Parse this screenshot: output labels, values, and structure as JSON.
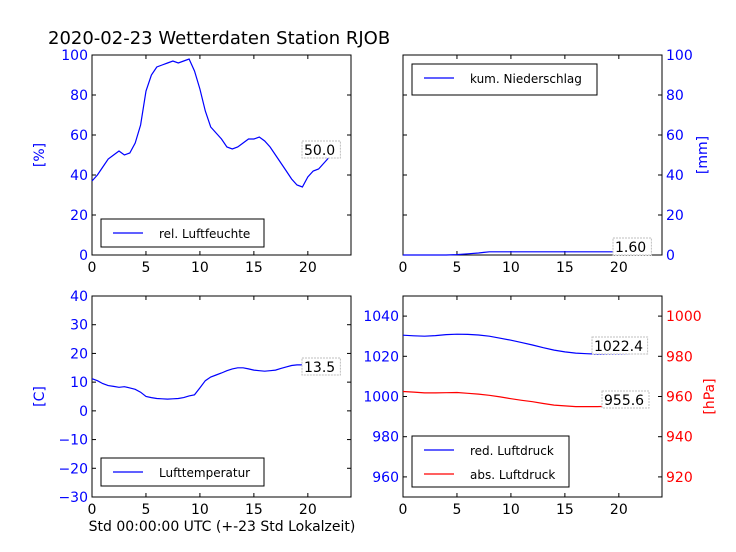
{
  "title": "2020-02-23 Wetterdaten Station RJOB",
  "xlabel": "Std 00:00:00 UTC (+-23 Std Lokalzeit)",
  "colors": {
    "blue": "#0000ff",
    "red": "#ff0000",
    "annotation_bg": "#f4c7c3"
  },
  "chart_data": [
    {
      "id": "humidity",
      "type": "line",
      "ylabel": "[%]",
      "xlim": [
        0,
        24
      ],
      "ylim": [
        0,
        100
      ],
      "xticks": [
        "0",
        "5",
        "10",
        "15",
        "20"
      ],
      "yticks": [
        "0",
        "20",
        "40",
        "60",
        "80",
        "100"
      ],
      "legend": {
        "position": "lower-left",
        "entries": [
          {
            "label": "rel. Luftfeuchte",
            "color": "#0000ff"
          }
        ]
      },
      "annotation": "50.0",
      "series": [
        {
          "name": "rel. Luftfeuchte",
          "color": "#0000ff",
          "x": [
            0,
            0.5,
            1,
            1.5,
            2,
            2.5,
            3,
            3.5,
            4,
            4.5,
            5,
            5.5,
            6,
            6.5,
            7,
            7.5,
            8,
            8.5,
            9,
            9.5,
            10,
            10.5,
            11,
            11.5,
            12,
            12.5,
            13,
            13.5,
            14,
            14.5,
            15,
            15.5,
            16,
            16.5,
            17,
            17.5,
            18,
            18.5,
            19,
            19.5,
            20,
            20.5,
            21,
            21.5,
            22,
            22.5
          ],
          "y": [
            37,
            40,
            44,
            48,
            50,
            52,
            50,
            51,
            56,
            65,
            82,
            90,
            94,
            95,
            96,
            97,
            96,
            97,
            98,
            92,
            83,
            72,
            64,
            61,
            58,
            54,
            53,
            54,
            56,
            58,
            58,
            59,
            57,
            54,
            50,
            46,
            42,
            38,
            35,
            34,
            39,
            42,
            43,
            46,
            49,
            50
          ]
        }
      ]
    },
    {
      "id": "precipitation",
      "type": "line",
      "ylabel": "[mm]",
      "xlim": [
        0,
        24
      ],
      "ylim": [
        0,
        100
      ],
      "xticks": [
        "0",
        "5",
        "10",
        "15",
        "20"
      ],
      "yticks": [
        "0",
        "20",
        "40",
        "60",
        "80",
        "100"
      ],
      "legend": {
        "position": "top-left",
        "entries": [
          {
            "label": "kum. Niederschlag",
            "color": "#0000ff"
          }
        ]
      },
      "annotation": "1.60",
      "series": [
        {
          "name": "kum. Niederschlag",
          "color": "#0000ff",
          "x": [
            0,
            4,
            5,
            6,
            7,
            7.5,
            8,
            10,
            15,
            20,
            22.5
          ],
          "y": [
            0,
            0,
            0.2,
            0.6,
            1.0,
            1.3,
            1.6,
            1.6,
            1.6,
            1.6,
            1.6
          ]
        }
      ]
    },
    {
      "id": "temperature",
      "type": "line",
      "ylabel": "[C]",
      "xlim": [
        0,
        24
      ],
      "ylim": [
        -30,
        40
      ],
      "xticks": [
        "0",
        "5",
        "10",
        "15",
        "20"
      ],
      "yticks": [
        "−30",
        "−20",
        "−10",
        "0",
        "10",
        "20",
        "30",
        "40"
      ],
      "legend": {
        "position": "lower-left",
        "entries": [
          {
            "label": "Lufttemperatur",
            "color": "#0000ff"
          }
        ]
      },
      "annotation": "13.5",
      "series": [
        {
          "name": "Lufttemperatur",
          "color": "#0000ff",
          "x": [
            0,
            0.5,
            1,
            1.5,
            2,
            2.5,
            3,
            3.5,
            4,
            4.5,
            5,
            5.5,
            6,
            6.5,
            7,
            7.5,
            8,
            8.5,
            9,
            9.5,
            10,
            10.5,
            11,
            11.5,
            12,
            12.5,
            13,
            13.5,
            14,
            14.5,
            15,
            15.5,
            16,
            16.5,
            17,
            17.5,
            18,
            18.5,
            19,
            19.5,
            20,
            20.5,
            21,
            21.5,
            22,
            22.5
          ],
          "y": [
            11.2,
            10.5,
            9.5,
            8.8,
            8.5,
            8.2,
            8.4,
            8.0,
            7.5,
            6.5,
            5.0,
            4.6,
            4.3,
            4.2,
            4.1,
            4.2,
            4.3,
            4.6,
            5.2,
            5.6,
            8.0,
            10.5,
            11.8,
            12.5,
            13.2,
            14.0,
            14.6,
            15.0,
            15.0,
            14.6,
            14.2,
            14.0,
            13.8,
            14.0,
            14.2,
            14.8,
            15.3,
            15.8,
            16.0,
            16.0,
            15.6,
            15.0,
            14.2,
            13.8,
            13.6,
            13.5
          ]
        }
      ]
    },
    {
      "id": "pressure",
      "type": "line",
      "ylabel": "[hPa]",
      "xlim": [
        0,
        24
      ],
      "ylim": [
        950,
        1050
      ],
      "ylim_right": [
        910,
        1010
      ],
      "xticks": [
        "0",
        "5",
        "10",
        "15",
        "20"
      ],
      "yticks": [
        "960",
        "980",
        "1000",
        "1020",
        "1040"
      ],
      "yticks_right": [
        "920",
        "940",
        "960",
        "980",
        "1000"
      ],
      "legend": {
        "position": "lower-left",
        "entries": [
          {
            "label": "red. Luftdruck",
            "color": "#0000ff"
          },
          {
            "label": "abs. Luftdruck",
            "color": "#ff0000"
          }
        ]
      },
      "annotation": "1022.4",
      "annotation_right": "955.6",
      "series": [
        {
          "name": "red. Luftdruck",
          "color": "#0000ff",
          "axis": "left",
          "x": [
            0,
            1,
            2,
            3,
            4,
            5,
            6,
            7,
            8,
            9,
            10,
            11,
            12,
            13,
            14,
            15,
            16,
            17,
            18,
            19,
            20,
            21,
            22,
            22.5
          ],
          "y": [
            1030.5,
            1030.2,
            1030.0,
            1030.3,
            1030.8,
            1031.0,
            1030.9,
            1030.6,
            1030.0,
            1029.0,
            1028.0,
            1026.8,
            1025.6,
            1024.3,
            1023.1,
            1022.2,
            1021.6,
            1021.3,
            1021.1,
            1021.2,
            1021.2,
            1021.4,
            1021.8,
            1022.4
          ]
        },
        {
          "name": "abs. Luftdruck",
          "color": "#ff0000",
          "axis": "right",
          "x": [
            0,
            1,
            2,
            3,
            4,
            5,
            6,
            7,
            8,
            9,
            10,
            11,
            12,
            13,
            14,
            15,
            16,
            17,
            18,
            19,
            20,
            21,
            22,
            22.5
          ],
          "y": [
            962.5,
            962.2,
            961.8,
            961.8,
            961.9,
            962.0,
            961.6,
            961.2,
            960.6,
            959.8,
            958.9,
            958.1,
            957.4,
            956.5,
            955.7,
            955.3,
            955.0,
            955.0,
            955.0,
            955.1,
            955.2,
            955.3,
            955.5,
            955.6
          ]
        }
      ]
    }
  ]
}
